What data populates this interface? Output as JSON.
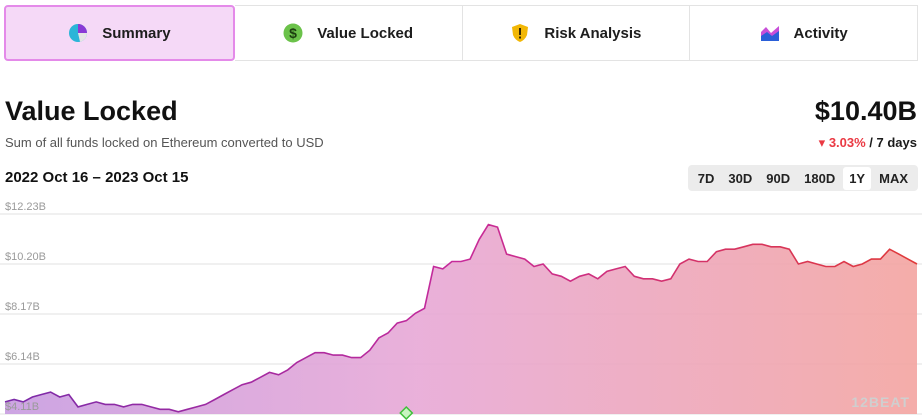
{
  "tabs": [
    {
      "label": "Summary",
      "icon": "pie-chart-icon",
      "active": true
    },
    {
      "label": "Value Locked",
      "icon": "dollar-coin-icon",
      "active": false
    },
    {
      "label": "Risk Analysis",
      "icon": "shield-warning-icon",
      "active": false
    },
    {
      "label": "Activity",
      "icon": "area-chart-icon",
      "active": false
    }
  ],
  "header": {
    "title": "Value Locked",
    "subtitle": "Sum of all funds locked on Ethereum converted to USD",
    "value": "$10.40B",
    "change_arrow": "▾",
    "change_pct": "3.03%",
    "change_period": " / 7 days",
    "date_range": "2022 Oct 16 – 2023 Oct 15"
  },
  "ranges": [
    "7D",
    "30D",
    "90D",
    "180D",
    "1Y",
    "MAX"
  ],
  "selected_range": "1Y",
  "watermark": "12BEAT",
  "colors": {
    "accent": "#e48ae9",
    "negative": "#ea3943",
    "line_start": "#8e2aa8",
    "line_end": "#e04a4a"
  },
  "chart_data": {
    "type": "area",
    "x_start": "2022-10-16",
    "x_end": "2023-10-15",
    "ylim": [
      4.11,
      12.23
    ],
    "yticks": [
      "$12.23B",
      "$10.20B",
      "$8.17B",
      "$6.14B",
      "$4.11B"
    ],
    "ytick_values": [
      12.23,
      10.2,
      8.17,
      6.14,
      4.11
    ],
    "grid": true,
    "series": [
      {
        "values": [
          4.6,
          4.7,
          4.6,
          4.8,
          4.9,
          5.0,
          4.8,
          4.9,
          4.4,
          4.5,
          4.6,
          4.5,
          4.5,
          4.4,
          4.5,
          4.5,
          4.4,
          4.3,
          4.3,
          4.2,
          4.3,
          4.4,
          4.5,
          4.7,
          4.9,
          5.1,
          5.3,
          5.4,
          5.6,
          5.8,
          5.7,
          5.9,
          6.2,
          6.4,
          6.6,
          6.6,
          6.5,
          6.5,
          6.4,
          6.4,
          6.7,
          7.2,
          7.4,
          7.8,
          7.9,
          8.2,
          8.4,
          10.1,
          10.0,
          10.3,
          10.3,
          10.4,
          11.2,
          11.8,
          11.7,
          10.6,
          10.5,
          10.4,
          10.1,
          10.2,
          9.8,
          9.7,
          9.5,
          9.7,
          9.8,
          9.6,
          9.9,
          10.0,
          10.1,
          9.7,
          9.6,
          9.6,
          9.5,
          9.6,
          10.2,
          10.4,
          10.3,
          10.3,
          10.7,
          10.8,
          10.8,
          10.9,
          11.0,
          11.0,
          10.9,
          10.9,
          10.8,
          10.2,
          10.3,
          10.2,
          10.1,
          10.1,
          10.3,
          10.1,
          10.2,
          10.4,
          10.4,
          10.8,
          10.6,
          10.4,
          10.2
        ]
      }
    ],
    "marker": {
      "index": 44
    }
  }
}
